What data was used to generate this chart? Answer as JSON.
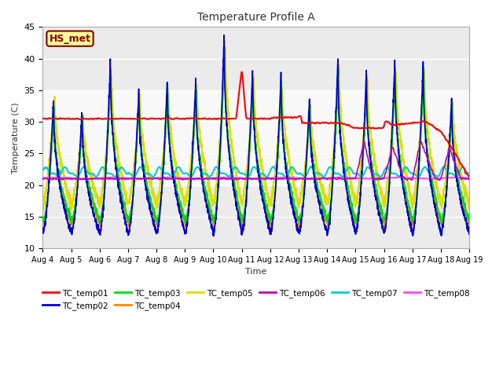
{
  "title": "Temperature Profile A",
  "xlabel": "Time",
  "ylabel": "Temperature (C)",
  "ylim": [
    10,
    45
  ],
  "series": {
    "TC_temp01": {
      "color": "#FF0000",
      "lw": 1.5,
      "zorder": 5
    },
    "TC_temp02": {
      "color": "#0000CC",
      "lw": 1.2,
      "zorder": 4
    },
    "TC_temp03": {
      "color": "#00DD00",
      "lw": 1.2,
      "zorder": 3
    },
    "TC_temp04": {
      "color": "#FF8800",
      "lw": 1.2,
      "zorder": 3
    },
    "TC_temp05": {
      "color": "#DDDD00",
      "lw": 1.5,
      "zorder": 2
    },
    "TC_temp06": {
      "color": "#BB00BB",
      "lw": 1.2,
      "zorder": 4
    },
    "TC_temp07": {
      "color": "#00CCCC",
      "lw": 1.5,
      "zorder": 3
    },
    "TC_temp08": {
      "color": "#FF44FF",
      "lw": 1.5,
      "zorder": 3
    }
  },
  "xtick_labels": [
    "Aug 4",
    "Aug 5",
    "Aug 6",
    "Aug 7",
    "Aug 8",
    "Aug 9",
    "Aug 10",
    "Aug 11",
    "Aug 12",
    "Aug 13",
    "Aug 14",
    "Aug 15",
    "Aug 16",
    "Aug 17",
    "Aug 18",
    "Aug 19"
  ],
  "ytick_vals": [
    10,
    15,
    20,
    25,
    30,
    35,
    40,
    45
  ],
  "annotation_text": "HS_met",
  "annotation_color": "#8B0000",
  "annotation_bg": "#FFFF99",
  "annotation_border": "#8B0000"
}
